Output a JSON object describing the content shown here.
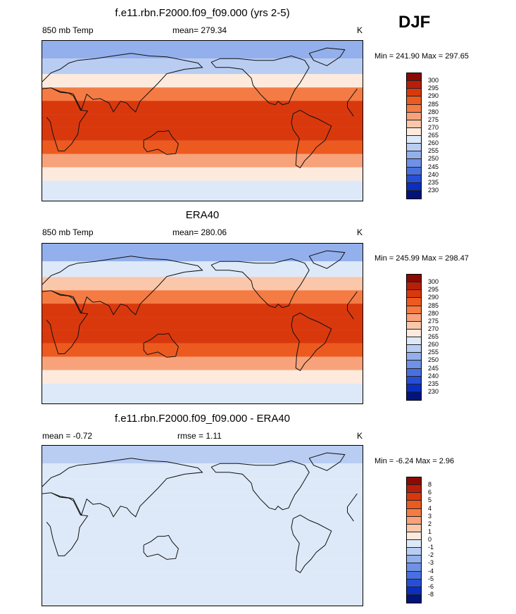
{
  "season": "DJF",
  "panels": [
    {
      "title": "f.e11.rbn.F2000.f09_f09.000 (yrs 2-5)",
      "left_label": "850 mb Temp",
      "center_label": "mean= 279.34",
      "unit": "K",
      "minmax": "Min = 241.90 Max = 297.65"
    },
    {
      "title": "ERA40",
      "left_label": "850 mb Temp",
      "center_label": "mean= 280.06",
      "unit": "K",
      "minmax": "Min = 245.99 Max = 298.47"
    },
    {
      "title": "f.e11.rbn.F2000.f09_f09.000 - ERA40",
      "left_label": "mean =  -0.72",
      "center_label": "rmse =   1.11",
      "unit": "K",
      "minmax": "Min =  -6.24 Max =   2.96"
    }
  ],
  "colorbars": {
    "temperature": {
      "labels": [
        "300",
        "295",
        "290",
        "285",
        "280",
        "275",
        "270",
        "265",
        "260",
        "255",
        "250",
        "245",
        "240",
        "235",
        "230"
      ],
      "colors": [
        "#8b0a02",
        "#b81f0a",
        "#d9380d",
        "#ec5a1f",
        "#f47c44",
        "#f7a27a",
        "#fac7ab",
        "#fdeadd",
        "#dde9f8",
        "#b9cdf2",
        "#93b0ec",
        "#6f91e6",
        "#4a70df",
        "#274fd6",
        "#0a2fbf",
        "#00147a"
      ]
    },
    "difference": {
      "labels": [
        "8",
        "6",
        "5",
        "4",
        "3",
        "2",
        "1",
        "0",
        "-1",
        "-2",
        "-3",
        "-4",
        "-5",
        "-6",
        "-8"
      ],
      "colors": [
        "#8b0a02",
        "#b81f0a",
        "#d9380d",
        "#ec5a1f",
        "#f47c44",
        "#f7a27a",
        "#fac7ab",
        "#fdeadd",
        "#dde9f8",
        "#b9cdf2",
        "#93b0ec",
        "#6f91e6",
        "#4a70df",
        "#274fd6",
        "#0a2fbf",
        "#00147a"
      ]
    }
  },
  "chart_data": [
    {
      "type": "heatmap",
      "title": "f.e11.rbn.F2000.f09_f09.000 (yrs 2-5)",
      "variable": "850 mb Temp",
      "units": "K",
      "mean": 279.34,
      "min": 241.9,
      "max": 297.65,
      "contour_levels": [
        230,
        235,
        240,
        245,
        250,
        255,
        260,
        265,
        270,
        275,
        280,
        285,
        290,
        295,
        300
      ],
      "lat_band_values": [
        {
          "lat": 80,
          "value": 250
        },
        {
          "lat": 60,
          "value": 258
        },
        {
          "lat": 45,
          "value": 268
        },
        {
          "lat": 30,
          "value": 282
        },
        {
          "lat": 15,
          "value": 291
        },
        {
          "lat": 0,
          "value": 292
        },
        {
          "lat": -15,
          "value": 292
        },
        {
          "lat": -30,
          "value": 287
        },
        {
          "lat": -45,
          "value": 277
        },
        {
          "lat": -60,
          "value": 268
        },
        {
          "lat": -75,
          "value": 262
        }
      ]
    },
    {
      "type": "heatmap",
      "title": "ERA40",
      "variable": "850 mb Temp",
      "units": "K",
      "mean": 280.06,
      "min": 245.99,
      "max": 298.47,
      "contour_levels": [
        230,
        235,
        240,
        245,
        250,
        255,
        260,
        265,
        270,
        275,
        280,
        285,
        290,
        295,
        300
      ],
      "lat_band_values": [
        {
          "lat": 80,
          "value": 252
        },
        {
          "lat": 60,
          "value": 260
        },
        {
          "lat": 45,
          "value": 270
        },
        {
          "lat": 30,
          "value": 283
        },
        {
          "lat": 15,
          "value": 292
        },
        {
          "lat": 0,
          "value": 293
        },
        {
          "lat": -15,
          "value": 293
        },
        {
          "lat": -30,
          "value": 288
        },
        {
          "lat": -45,
          "value": 278
        },
        {
          "lat": -60,
          "value": 269
        },
        {
          "lat": -75,
          "value": 263
        }
      ]
    },
    {
      "type": "heatmap",
      "title": "f.e11.rbn.F2000.f09_f09.000 - ERA40",
      "units": "K",
      "mean": -0.72,
      "rmse": 1.11,
      "min": -6.24,
      "max": 2.96,
      "contour_levels": [
        -8,
        -6,
        -5,
        -4,
        -3,
        -2,
        -1,
        0,
        1,
        2,
        3,
        4,
        5,
        6,
        8
      ],
      "lat_band_values": [
        {
          "lat": 80,
          "value": -1.5
        },
        {
          "lat": 60,
          "value": -1.0
        },
        {
          "lat": 45,
          "value": -0.5
        },
        {
          "lat": 30,
          "value": -0.8
        },
        {
          "lat": 15,
          "value": -0.6
        },
        {
          "lat": 0,
          "value": -0.7
        },
        {
          "lat": -15,
          "value": -0.8
        },
        {
          "lat": -30,
          "value": -0.6
        },
        {
          "lat": -45,
          "value": -0.9
        },
        {
          "lat": -60,
          "value": -1.0
        },
        {
          "lat": -75,
          "value": -0.4
        }
      ]
    }
  ]
}
